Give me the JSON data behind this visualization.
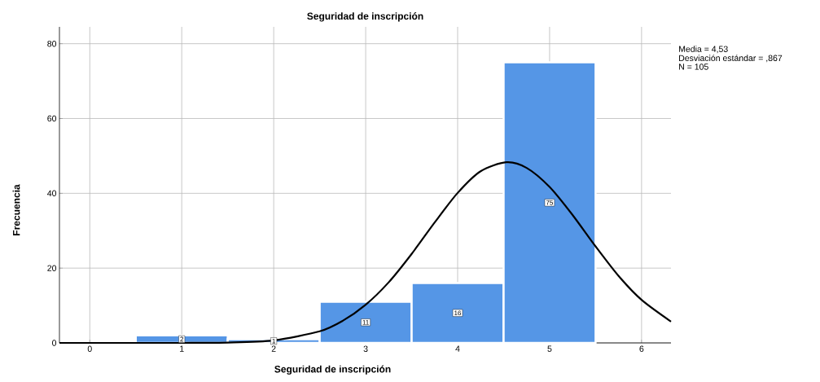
{
  "chart_data": {
    "type": "histogram",
    "title": "Seguridad de inscripción",
    "xlabel": "Seguridad de inscripción",
    "ylabel": "Frecuencia",
    "xlim": [
      -0.33,
      6.32
    ],
    "ylim": [
      0,
      84.5
    ],
    "xticks": [
      0,
      1,
      2,
      3,
      4,
      5,
      6
    ],
    "yticks": [
      0,
      20,
      40,
      60,
      80
    ],
    "grid": true,
    "annotations": [
      "Media = 4,53",
      "Desviación estándar = ,867",
      "N = 105"
    ],
    "series": [
      {
        "color": "#5596e6",
        "bins": [
          0.5,
          1.5,
          2.5,
          3.5,
          4.5,
          5.5
        ],
        "values": [
          2,
          1,
          11,
          16,
          75
        ],
        "value_labels": [
          "2",
          "1",
          "11",
          "16",
          "75"
        ]
      },
      {
        "type": "line",
        "color": "#000000",
        "x": [
          -0.33,
          0,
          1,
          1.5,
          2,
          2.5,
          2.75,
          3,
          3.25,
          3.5,
          3.75,
          4,
          4.25,
          4.53,
          4.75,
          5,
          5.25,
          5.5,
          5.75,
          6,
          6.32
        ],
        "values": [
          0,
          0,
          0,
          0.1,
          0.7,
          3.1,
          5.9,
          10.2,
          16.2,
          23.8,
          32.2,
          40.1,
          45.9,
          48.3,
          46.8,
          41.7,
          34.2,
          25.8,
          17.9,
          11.5,
          5.7
        ]
      }
    ]
  }
}
